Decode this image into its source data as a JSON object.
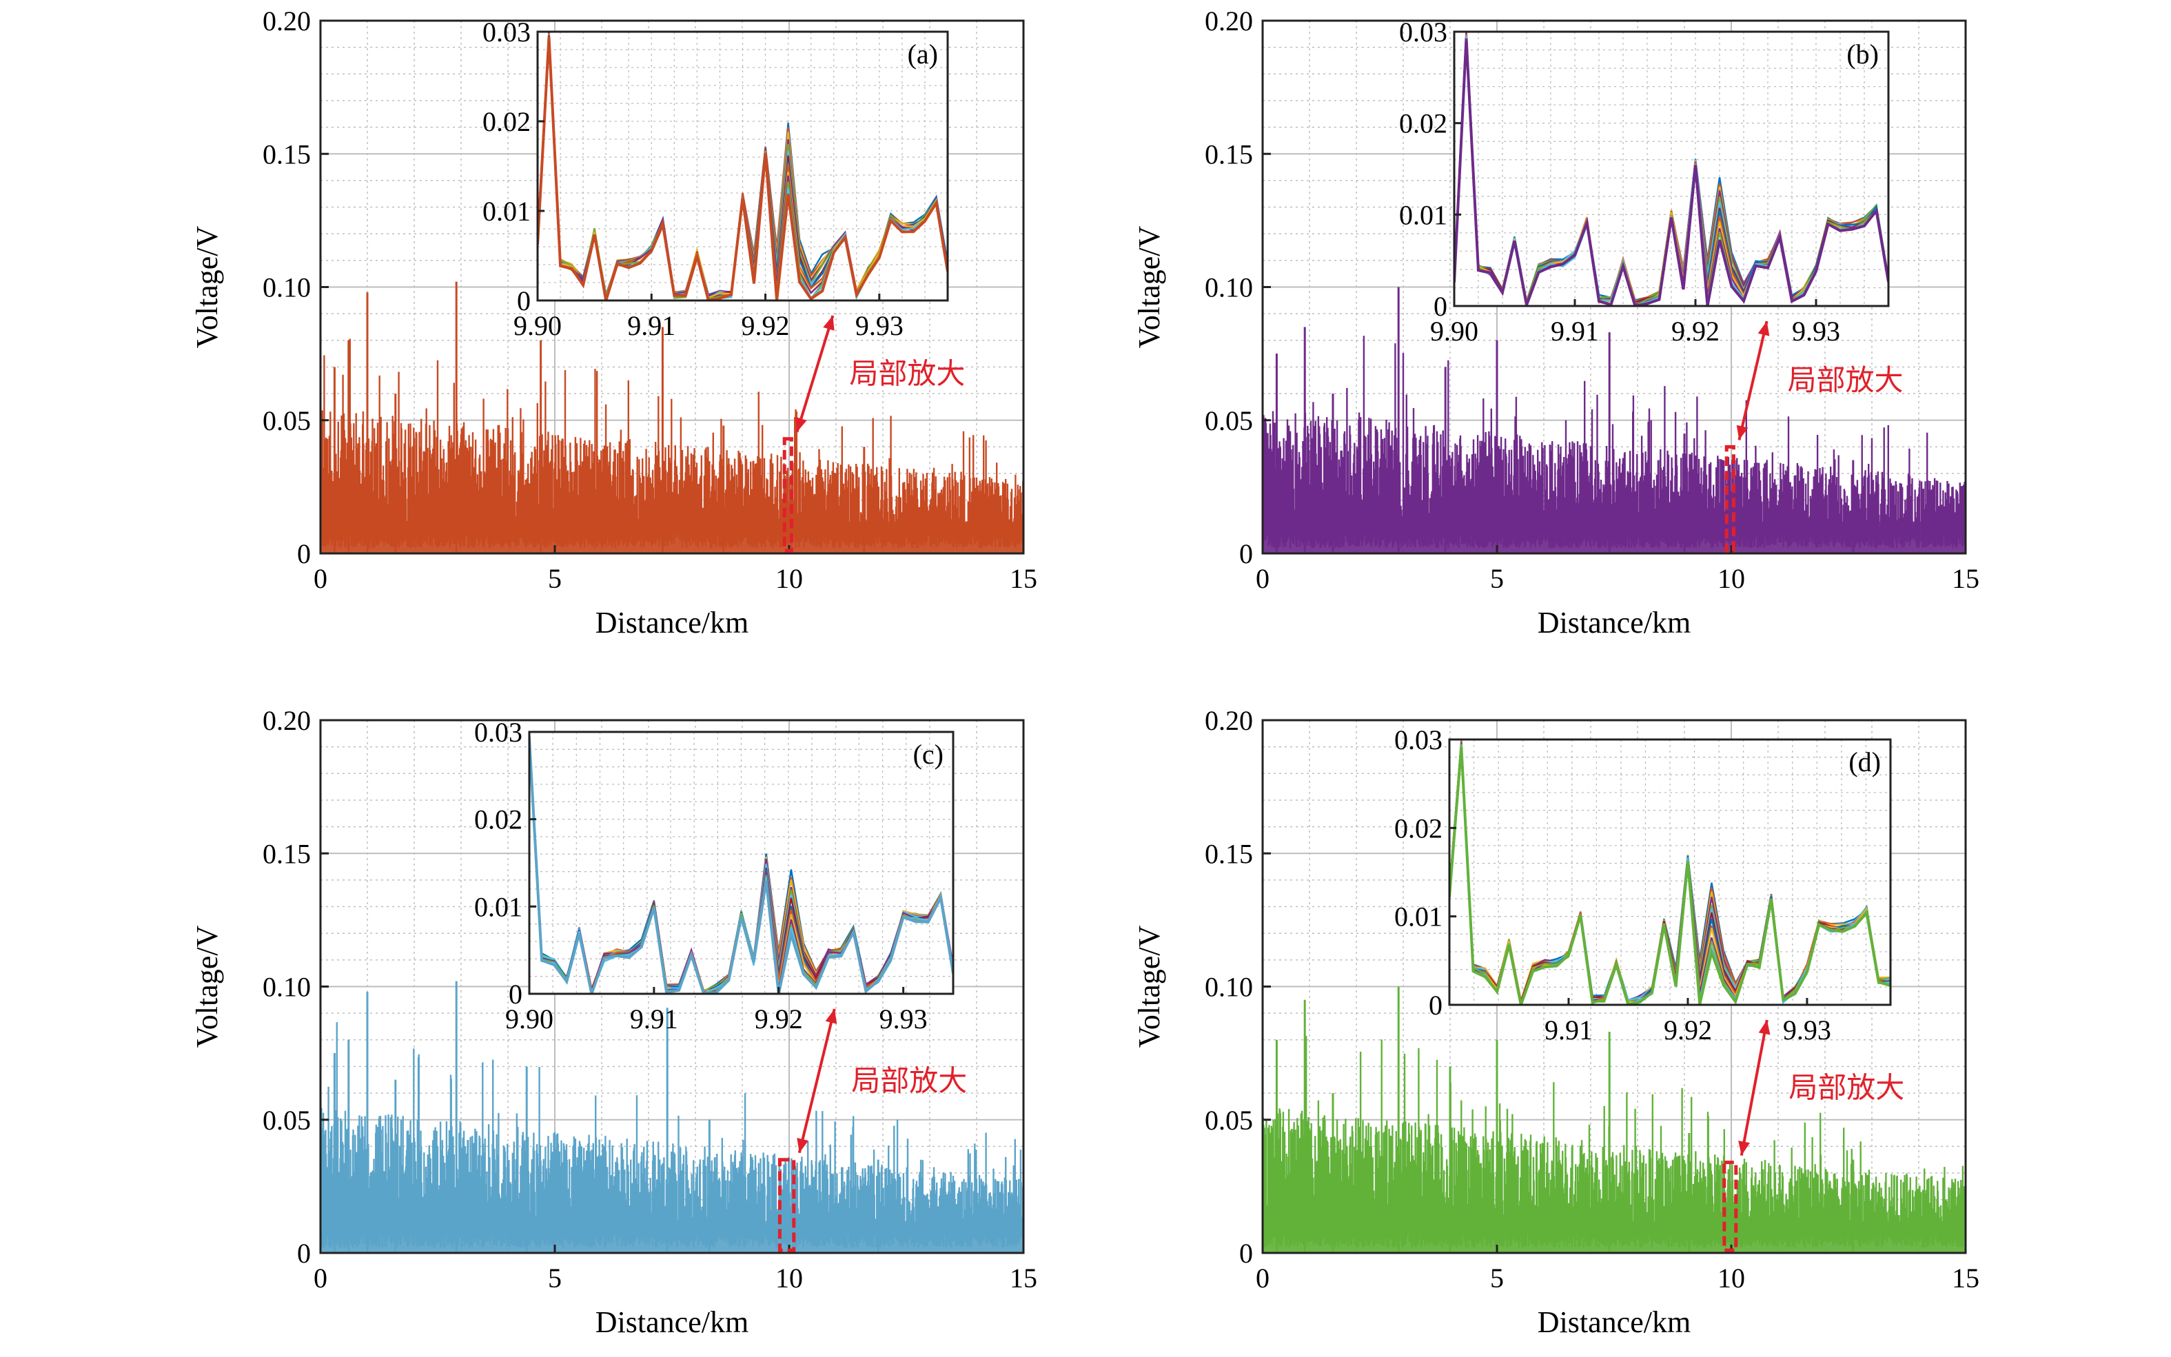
{
  "colors": {
    "accent_red": "#e0212b",
    "grid": "#bdbdbd",
    "inset_palette": [
      "#0072bd",
      "#d95319",
      "#edb120",
      "#7e2f8e",
      "#77ac30",
      "#4dbeee",
      "#a2142f"
    ]
  },
  "chart_data": [
    {
      "type": "line",
      "panel_label": "(a)",
      "color": "#c84a22",
      "xlabel": "Distance/km",
      "ylabel": "Voltage/V",
      "xlim": [
        0,
        15
      ],
      "ylim": [
        0,
        0.2
      ],
      "xticks": [
        "0",
        "5",
        "10",
        "15"
      ],
      "yticks": [
        "0",
        "0.05",
        "0.10",
        "0.15",
        "0.20"
      ],
      "grid": true,
      "peaks": [
        [
          0.3,
          0.07
        ],
        [
          0.6,
          0.08
        ],
        [
          1.0,
          0.098
        ],
        [
          1.6,
          0.06
        ],
        [
          2.9,
          0.102
        ],
        [
          4.7,
          0.08
        ],
        [
          7.3,
          0.085
        ],
        [
          8.6,
          0.048
        ],
        [
          11.6,
          0.04
        ]
      ],
      "annotation": {
        "text": "局部放大",
        "x_range": [
          9.9,
          10.05
        ],
        "y_top": 0.043
      },
      "inset": {
        "xlim": [
          9.9,
          9.936
        ],
        "ylim": [
          0,
          0.03
        ],
        "xticks": [
          "9.90",
          "9.91",
          "9.92",
          "9.93"
        ],
        "yticks": [
          "0",
          "0.01",
          "0.02",
          "0.03"
        ],
        "x": [
          9.9,
          9.901,
          9.902,
          9.903,
          9.904,
          9.905,
          9.906,
          9.907,
          9.908,
          9.909,
          9.91,
          9.911,
          9.912,
          9.913,
          9.914,
          9.915,
          9.916,
          9.917,
          9.918,
          9.919,
          9.92,
          9.921,
          9.922,
          9.923,
          9.924,
          9.925,
          9.926,
          9.927,
          9.928,
          9.929,
          9.93,
          9.931,
          9.932,
          9.933,
          9.934,
          9.935,
          9.936
        ],
        "y": [
          0.007,
          0.03,
          0.0045,
          0.004,
          0.0025,
          0.008,
          0.0005,
          0.0045,
          0.0045,
          0.005,
          0.006,
          0.009,
          0.001,
          0.001,
          0.0055,
          0.0005,
          0.001,
          0.001,
          0.012,
          0.005,
          0.017,
          0.006,
          0.02,
          0.007,
          0.003,
          0.005,
          0.006,
          0.0075,
          0.001,
          0.0035,
          0.0055,
          0.0095,
          0.0085,
          0.0085,
          0.0095,
          0.0115,
          0.004
        ],
        "spread": [
          [
            21,
            0.006
          ],
          [
            22,
            0.008
          ],
          [
            23,
            0.005
          ],
          [
            24,
            0.003
          ],
          [
            25,
            0.004
          ],
          [
            19,
            0.003
          ]
        ]
      }
    },
    {
      "type": "line",
      "panel_label": "(b)",
      "color": "#6e2a8a",
      "xlabel": "Distance/km",
      "ylabel": "Voltage/V",
      "xlim": [
        0,
        15
      ],
      "ylim": [
        0,
        0.2
      ],
      "xticks": [
        "0",
        "5",
        "10",
        "15"
      ],
      "yticks": [
        "0",
        "0.05",
        "0.10",
        "0.15",
        "0.20"
      ],
      "grid": true,
      "peaks": [
        [
          0.3,
          0.075
        ],
        [
          0.9,
          0.085
        ],
        [
          1.5,
          0.06
        ],
        [
          2.9,
          0.1
        ],
        [
          3.9,
          0.07
        ],
        [
          5.0,
          0.08
        ],
        [
          7.4,
          0.083
        ],
        [
          9.0,
          0.045
        ],
        [
          12.6,
          0.035
        ]
      ],
      "annotation": {
        "text": "局部放大",
        "x_range": [
          9.9,
          10.05
        ],
        "y_top": 0.04
      },
      "inset": {
        "xlim": [
          9.9,
          9.936
        ],
        "ylim": [
          0,
          0.03
        ],
        "xticks": [
          "9.90",
          "9.91",
          "9.92",
          "9.93"
        ],
        "yticks": [
          "0",
          "0.01",
          "0.02",
          "0.03"
        ],
        "x": [
          9.9,
          9.901,
          9.902,
          9.903,
          9.904,
          9.905,
          9.906,
          9.907,
          9.908,
          9.909,
          9.91,
          9.911,
          9.912,
          9.913,
          9.914,
          9.915,
          9.916,
          9.917,
          9.918,
          9.919,
          9.92,
          9.921,
          9.922,
          9.923,
          9.924,
          9.925,
          9.926,
          9.927,
          9.928,
          9.929,
          9.93,
          9.931,
          9.932,
          9.933,
          9.934,
          9.935,
          9.936
        ],
        "y": [
          0.003,
          0.03,
          0.0045,
          0.004,
          0.002,
          0.0075,
          0.0005,
          0.0045,
          0.005,
          0.005,
          0.006,
          0.0095,
          0.001,
          0.001,
          0.005,
          0.0005,
          0.001,
          0.0015,
          0.0105,
          0.004,
          0.016,
          0.005,
          0.014,
          0.006,
          0.0025,
          0.005,
          0.005,
          0.008,
          0.001,
          0.002,
          0.0045,
          0.0095,
          0.009,
          0.009,
          0.0095,
          0.011,
          0.003
        ],
        "spread": [
          [
            21,
            0.005
          ],
          [
            22,
            0.007
          ],
          [
            23,
            0.004
          ],
          [
            24,
            0.002
          ],
          [
            19,
            0.002
          ]
        ]
      }
    },
    {
      "type": "line",
      "panel_label": "(c)",
      "color": "#5ba4c9",
      "xlabel": "Distance/km",
      "ylabel": "Voltage/V",
      "xlim": [
        0,
        15
      ],
      "ylim": [
        0,
        0.2
      ],
      "xticks": [
        "0",
        "5",
        "10",
        "15"
      ],
      "yticks": [
        "0",
        "0.05",
        "0.10",
        "0.15",
        "0.20"
      ],
      "grid": true,
      "peaks": [
        [
          0.3,
          0.075
        ],
        [
          0.6,
          0.08
        ],
        [
          1.0,
          0.098
        ],
        [
          1.6,
          0.065
        ],
        [
          2.9,
          0.102
        ],
        [
          4.4,
          0.07
        ],
        [
          7.4,
          0.092
        ],
        [
          8.3,
          0.05
        ],
        [
          11.9,
          0.035
        ]
      ],
      "annotation": {
        "text": "局部放大",
        "x_range": [
          9.8,
          10.1
        ],
        "y_top": 0.035
      },
      "inset": {
        "xlim": [
          9.9,
          9.934
        ],
        "ylim": [
          0,
          0.03
        ],
        "xticks": [
          "9.90",
          "9.91",
          "9.92",
          "9.93"
        ],
        "yticks": [
          "0",
          "0.01",
          "0.02",
          "0.03"
        ],
        "x": [
          9.9,
          9.901,
          9.902,
          9.903,
          9.904,
          9.905,
          9.906,
          9.907,
          9.908,
          9.909,
          9.91,
          9.911,
          9.912,
          9.913,
          9.914,
          9.915,
          9.916,
          9.917,
          9.918,
          9.919,
          9.92,
          9.921,
          9.922,
          9.923,
          9.924,
          9.925,
          9.926,
          9.927,
          9.928,
          9.929,
          9.93,
          9.931,
          9.932,
          9.933,
          9.934
        ],
        "y": [
          0.03,
          0.0045,
          0.004,
          0.002,
          0.0075,
          0.0005,
          0.0045,
          0.005,
          0.005,
          0.006,
          0.0105,
          0.001,
          0.001,
          0.005,
          0.0005,
          0.001,
          0.002,
          0.0095,
          0.004,
          0.016,
          0.005,
          0.014,
          0.006,
          0.0025,
          0.005,
          0.005,
          0.0075,
          0.001,
          0.002,
          0.0045,
          0.0095,
          0.009,
          0.009,
          0.0115,
          0.003
        ],
        "spread": [
          [
            19,
            0.003
          ],
          [
            20,
            0.006
          ],
          [
            21,
            0.007
          ],
          [
            22,
            0.004
          ],
          [
            23,
            0.002
          ]
        ]
      }
    },
    {
      "type": "line",
      "panel_label": "(d)",
      "color": "#62b23a",
      "xlabel": "Distance/km",
      "ylabel": "Voltage/V",
      "xlim": [
        0,
        15
      ],
      "ylim": [
        0,
        0.2
      ],
      "xticks": [
        "0",
        "5",
        "10",
        "15"
      ],
      "yticks": [
        "0",
        "0.05",
        "0.10",
        "0.15",
        "0.20"
      ],
      "grid": true,
      "peaks": [
        [
          0.3,
          0.08
        ],
        [
          0.9,
          0.095
        ],
        [
          1.5,
          0.06
        ],
        [
          2.9,
          0.1
        ],
        [
          4.0,
          0.07
        ],
        [
          5.0,
          0.08
        ],
        [
          7.4,
          0.083
        ],
        [
          9.1,
          0.045
        ],
        [
          12.6,
          0.035
        ]
      ],
      "annotation": {
        "text": "局部放大",
        "x_range": [
          9.85,
          10.1
        ],
        "y_top": 0.034
      },
      "inset": {
        "xlim": [
          9.9,
          9.937
        ],
        "ylim": [
          0,
          0.03
        ],
        "xticks": [
          "9.91",
          "9.92",
          "9.93"
        ],
        "yticks": [
          "0",
          "0.01",
          "0.02",
          "0.03"
        ],
        "x": [
          9.9,
          9.901,
          9.902,
          9.903,
          9.904,
          9.905,
          9.906,
          9.907,
          9.908,
          9.909,
          9.91,
          9.911,
          9.912,
          9.913,
          9.914,
          9.915,
          9.916,
          9.917,
          9.918,
          9.919,
          9.92,
          9.921,
          9.922,
          9.923,
          9.924,
          9.925,
          9.926,
          9.927,
          9.928,
          9.929,
          9.93,
          9.931,
          9.932,
          9.933,
          9.934,
          9.935,
          9.936,
          9.937
        ],
        "y": [
          0.013,
          0.03,
          0.0045,
          0.004,
          0.002,
          0.0075,
          0.0005,
          0.0045,
          0.005,
          0.005,
          0.006,
          0.0105,
          0.001,
          0.001,
          0.005,
          0.0005,
          0.001,
          0.002,
          0.0095,
          0.004,
          0.017,
          0.005,
          0.014,
          0.006,
          0.0025,
          0.005,
          0.005,
          0.0125,
          0.001,
          0.002,
          0.0045,
          0.0095,
          0.009,
          0.009,
          0.0095,
          0.011,
          0.003,
          0.003
        ],
        "spread": [
          [
            21,
            0.005
          ],
          [
            22,
            0.008
          ],
          [
            23,
            0.004
          ],
          [
            24,
            0.002
          ],
          [
            19,
            0.002
          ]
        ]
      }
    }
  ]
}
